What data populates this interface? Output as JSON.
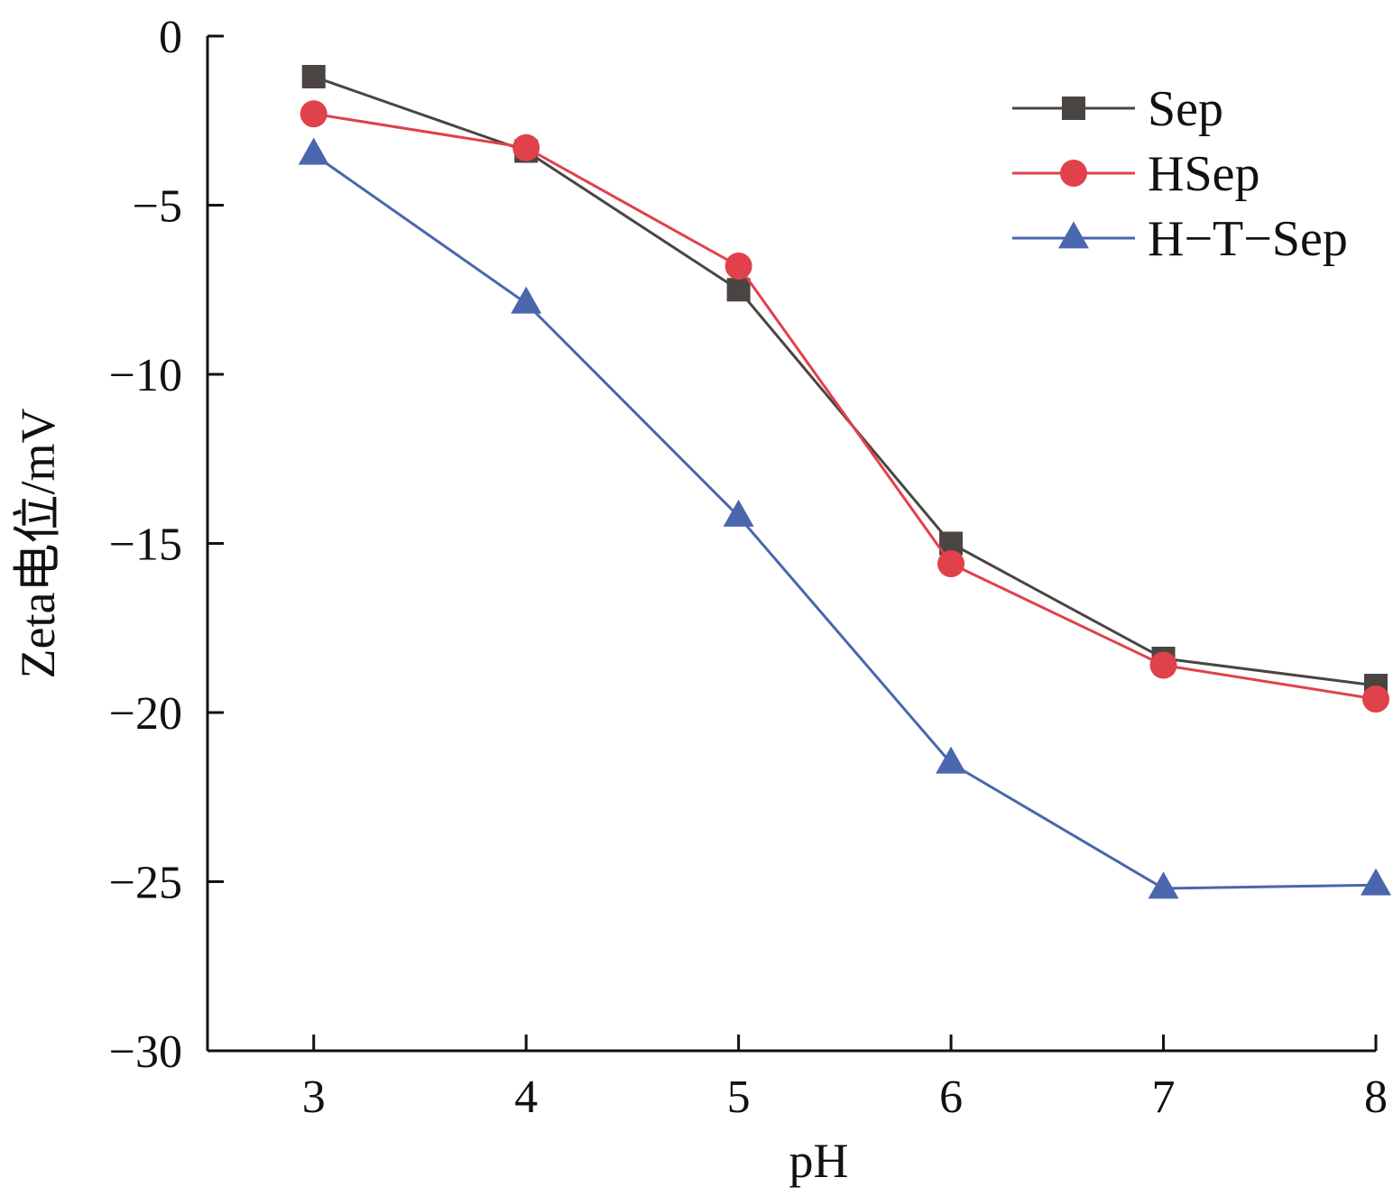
{
  "chart_data": {
    "type": "line",
    "title": "",
    "xlabel": "pH",
    "ylabel": "Zeta电位/mV",
    "x": [
      3,
      4,
      5,
      6,
      7,
      8
    ],
    "x_tick_labels": [
      "3",
      "4",
      "5",
      "6",
      "7",
      "8"
    ],
    "xlim": [
      2.5,
      8
    ],
    "ylim": [
      -30,
      0
    ],
    "y_ticks": [
      0,
      -5,
      -10,
      -15,
      -20,
      -25,
      -30
    ],
    "y_tick_labels": [
      "0",
      "−5",
      "−10",
      "−15",
      "−20",
      "−25",
      "−30"
    ],
    "grid": false,
    "legend": "top-right",
    "series": [
      {
        "name": "Sep",
        "marker": "square",
        "color": "#4a4542",
        "values": [
          -1.2,
          -3.4,
          -7.5,
          -15.0,
          -18.4,
          -19.2
        ]
      },
      {
        "name": "HSep",
        "marker": "circle",
        "color": "#e0414b",
        "values": [
          -2.3,
          -3.3,
          -6.8,
          -15.6,
          -18.6,
          -19.6
        ]
      },
      {
        "name": "H−T−Sep",
        "marker": "triangle",
        "color": "#4a66ad",
        "values": [
          -3.5,
          -7.9,
          -14.2,
          -21.5,
          -25.2,
          -25.1
        ]
      }
    ]
  }
}
